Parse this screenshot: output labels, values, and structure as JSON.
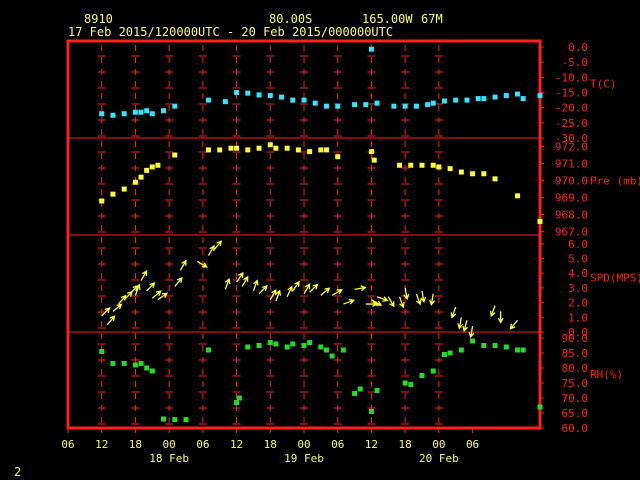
{
  "header": {
    "station_id": "8910",
    "lat": "80.00S",
    "lon": "165.00W",
    "elev": "67M",
    "period": "17 Feb 2015/120000UTC - 20 Feb 2015/000000UTC"
  },
  "footer": {
    "page_number": "2"
  },
  "colors": {
    "frame": "#ff2020",
    "axis_text": "#ffff66",
    "temperature": "#33e5ff",
    "pressure": "#ffff33",
    "wind": "#ffff33",
    "rh": "#22dd22"
  },
  "chart_data": {
    "type": "scatter",
    "x_ticks": [
      "06",
      "12",
      "18",
      "00",
      "06",
      "12",
      "18",
      "00",
      "06",
      "12",
      "18",
      "00",
      "06"
    ],
    "x_hours_range": [
      -6,
      78
    ],
    "date_labels": [
      {
        "text": "18 Feb",
        "hour": 12
      },
      {
        "text": "19 Feb",
        "hour": 36
      },
      {
        "text": "20 Feb",
        "hour": 60
      }
    ],
    "panels": [
      {
        "name": "T(C)",
        "kind": "points",
        "color_key": "temperature",
        "ylim": [
          -30,
          2
        ],
        "ticks": [
          {
            "value": 0,
            "label": "0.0"
          },
          {
            "value": -5,
            "label": "-5.0"
          },
          {
            "value": -10,
            "label": "-10.0"
          },
          {
            "value": -15,
            "label": "-15.0"
          },
          {
            "value": -20,
            "label": "-20.0"
          },
          {
            "value": -25,
            "label": "-25.0"
          },
          {
            "value": -30,
            "label": "-30.0"
          }
        ],
        "points": [
          [
            0,
            -22
          ],
          [
            2,
            -22.5
          ],
          [
            4,
            -22
          ],
          [
            6,
            -21.5
          ],
          [
            7,
            -21.5
          ],
          [
            8,
            -21
          ],
          [
            9,
            -22
          ],
          [
            11,
            -21
          ],
          [
            13,
            -19.5
          ],
          [
            19,
            -17.5
          ],
          [
            22,
            -18
          ],
          [
            24,
            -15
          ],
          [
            26,
            -15.2
          ],
          [
            28,
            -15.8
          ],
          [
            30,
            -16
          ],
          [
            32,
            -16.5
          ],
          [
            34,
            -17.5
          ],
          [
            36,
            -17.5
          ],
          [
            38,
            -18.5
          ],
          [
            40,
            -19.5
          ],
          [
            42,
            -19.5
          ],
          [
            45,
            -19
          ],
          [
            47,
            -19
          ],
          [
            48,
            -0.7
          ],
          [
            49,
            -18.5
          ],
          [
            52,
            -19.5
          ],
          [
            54,
            -19.5
          ],
          [
            56,
            -19.5
          ],
          [
            58,
            -19
          ],
          [
            59,
            -18.5
          ],
          [
            61,
            -17.8
          ],
          [
            63,
            -17.5
          ],
          [
            65,
            -17.5
          ],
          [
            67,
            -17
          ],
          [
            68,
            -17
          ],
          [
            70,
            -16.5
          ],
          [
            72,
            -16
          ],
          [
            74,
            -15.5
          ],
          [
            75,
            -17
          ],
          [
            78,
            -16
          ]
        ]
      },
      {
        "name": "Pre (mb)",
        "kind": "points",
        "color_key": "pressure",
        "ylim": [
          966.8,
          972.5
        ],
        "ticks": [
          {
            "value": 972,
            "label": "972.0"
          },
          {
            "value": 971,
            "label": "971.0"
          },
          {
            "value": 970,
            "label": "970.0"
          },
          {
            "value": 969,
            "label": "969.0"
          },
          {
            "value": 968,
            "label": "968.0"
          },
          {
            "value": 967,
            "label": "967.0"
          }
        ],
        "points": [
          [
            0,
            968.8
          ],
          [
            2,
            969.2
          ],
          [
            4,
            969.5
          ],
          [
            6,
            969.9
          ],
          [
            7,
            970.2
          ],
          [
            8,
            970.6
          ],
          [
            9,
            970.8
          ],
          [
            10,
            970.9
          ],
          [
            13,
            971.5
          ],
          [
            19,
            971.8
          ],
          [
            21,
            971.8
          ],
          [
            23,
            971.9
          ],
          [
            24,
            971.9
          ],
          [
            26,
            971.8
          ],
          [
            28,
            971.9
          ],
          [
            30,
            972.1
          ],
          [
            31,
            971.9
          ],
          [
            33,
            971.9
          ],
          [
            35,
            971.8
          ],
          [
            37,
            971.7
          ],
          [
            39,
            971.8
          ],
          [
            40,
            971.8
          ],
          [
            42,
            971.4
          ],
          [
            48,
            971.7
          ],
          [
            48.5,
            971.2
          ],
          [
            53,
            970.9
          ],
          [
            55,
            970.9
          ],
          [
            57,
            970.9
          ],
          [
            59,
            970.9
          ],
          [
            60,
            970.8
          ],
          [
            62,
            970.7
          ],
          [
            64,
            970.5
          ],
          [
            66,
            970.4
          ],
          [
            68,
            970.4
          ],
          [
            70,
            970.1
          ],
          [
            74,
            969.1
          ],
          [
            78,
            967.6
          ]
        ]
      },
      {
        "name": "SPD(MPS)",
        "kind": "wind",
        "color_key": "wind",
        "ylim": [
          0,
          6.6
        ],
        "ticks": [
          {
            "value": 0,
            "label": "0.0"
          },
          {
            "value": 1,
            "label": "1.0"
          },
          {
            "value": 2,
            "label": "2.0"
          },
          {
            "value": 3,
            "label": "3.0"
          },
          {
            "value": 4,
            "label": "4.0"
          },
          {
            "value": 5,
            "label": "5.0"
          },
          {
            "value": 6,
            "label": "6.0"
          }
        ],
        "points": [
          [
            0,
            1.1,
            225
          ],
          [
            1,
            0.5,
            220
          ],
          [
            2,
            1.4,
            230
          ],
          [
            3,
            1.9,
            220
          ],
          [
            4,
            2.2,
            225
          ],
          [
            5,
            2.6,
            225
          ],
          [
            6,
            2.5,
            200
          ],
          [
            7,
            3.5,
            210
          ],
          [
            8,
            2.8,
            225
          ],
          [
            9,
            2.3,
            230
          ],
          [
            10,
            2.2,
            235
          ],
          [
            13,
            3.1,
            220
          ],
          [
            14,
            4.2,
            210
          ],
          [
            17,
            4.8,
            300
          ],
          [
            19,
            5.2,
            210
          ],
          [
            20,
            5.6,
            220
          ],
          [
            22,
            2.9,
            200
          ],
          [
            24,
            3.4,
            215
          ],
          [
            25,
            3.1,
            210
          ],
          [
            27,
            2.8,
            200
          ],
          [
            28,
            2.6,
            225
          ],
          [
            30,
            2.2,
            210
          ],
          [
            31,
            2.1,
            200
          ],
          [
            33,
            2.4,
            205
          ],
          [
            34,
            2.8,
            215
          ],
          [
            36,
            2.6,
            210
          ],
          [
            37,
            2.7,
            225
          ],
          [
            39,
            2.5,
            230
          ],
          [
            41,
            2.5,
            240
          ],
          [
            43,
            1.9,
            250
          ],
          [
            45,
            2.9,
            260
          ],
          [
            47,
            1.9,
            270
          ],
          [
            48,
            2.2,
            300
          ],
          [
            49,
            2.4,
            290
          ],
          [
            51,
            2.4,
            330
          ],
          [
            53,
            2.4,
            340
          ],
          [
            54,
            3.0,
            350
          ],
          [
            56,
            2.6,
            340
          ],
          [
            57,
            2.8,
            350
          ],
          [
            59,
            2.6,
            10
          ],
          [
            63,
            1.7,
            20
          ],
          [
            64,
            1.0,
            10
          ],
          [
            65,
            0.8,
            15
          ],
          [
            66,
            0.4,
            10
          ],
          [
            70,
            1.8,
            20
          ],
          [
            71,
            1.4,
            0
          ],
          [
            74,
            0.8,
            40
          ]
        ]
      },
      {
        "name": "RH(%)",
        "kind": "points",
        "color_key": "rh",
        "ylim": [
          60,
          92
        ],
        "ticks": [
          {
            "value": 90,
            "label": "90.0"
          },
          {
            "value": 85,
            "label": "85.0"
          },
          {
            "value": 80,
            "label": "80.0"
          },
          {
            "value": 75,
            "label": "75.0"
          },
          {
            "value": 70,
            "label": "70.0"
          },
          {
            "value": 65,
            "label": "65.0"
          },
          {
            "value": 60,
            "label": "60.0"
          }
        ],
        "points": [
          [
            0,
            85.5
          ],
          [
            2,
            81.5
          ],
          [
            4,
            81.5
          ],
          [
            6,
            81
          ],
          [
            7,
            81.5
          ],
          [
            8,
            80
          ],
          [
            9,
            79
          ],
          [
            11,
            63
          ],
          [
            13,
            62.8
          ],
          [
            15,
            62.8
          ],
          [
            19,
            86
          ],
          [
            24,
            68.5
          ],
          [
            24.5,
            70
          ],
          [
            26,
            87
          ],
          [
            28,
            87.5
          ],
          [
            30,
            88.5
          ],
          [
            31,
            88
          ],
          [
            33,
            87
          ],
          [
            34,
            88
          ],
          [
            36,
            87.5
          ],
          [
            37,
            88.5
          ],
          [
            39,
            87
          ],
          [
            40,
            86
          ],
          [
            41,
            84
          ],
          [
            43,
            86
          ],
          [
            45,
            71.5
          ],
          [
            46,
            73
          ],
          [
            48,
            65.5
          ],
          [
            49,
            72.5
          ],
          [
            54,
            75
          ],
          [
            55,
            74.5
          ],
          [
            57,
            77.5
          ],
          [
            59,
            79
          ],
          [
            61,
            84.5
          ],
          [
            62,
            85
          ],
          [
            64,
            86
          ],
          [
            66,
            89
          ],
          [
            68,
            87.5
          ],
          [
            70,
            87.5
          ],
          [
            72,
            87
          ],
          [
            74,
            86
          ],
          [
            75,
            86
          ],
          [
            78,
            67
          ]
        ]
      }
    ]
  }
}
